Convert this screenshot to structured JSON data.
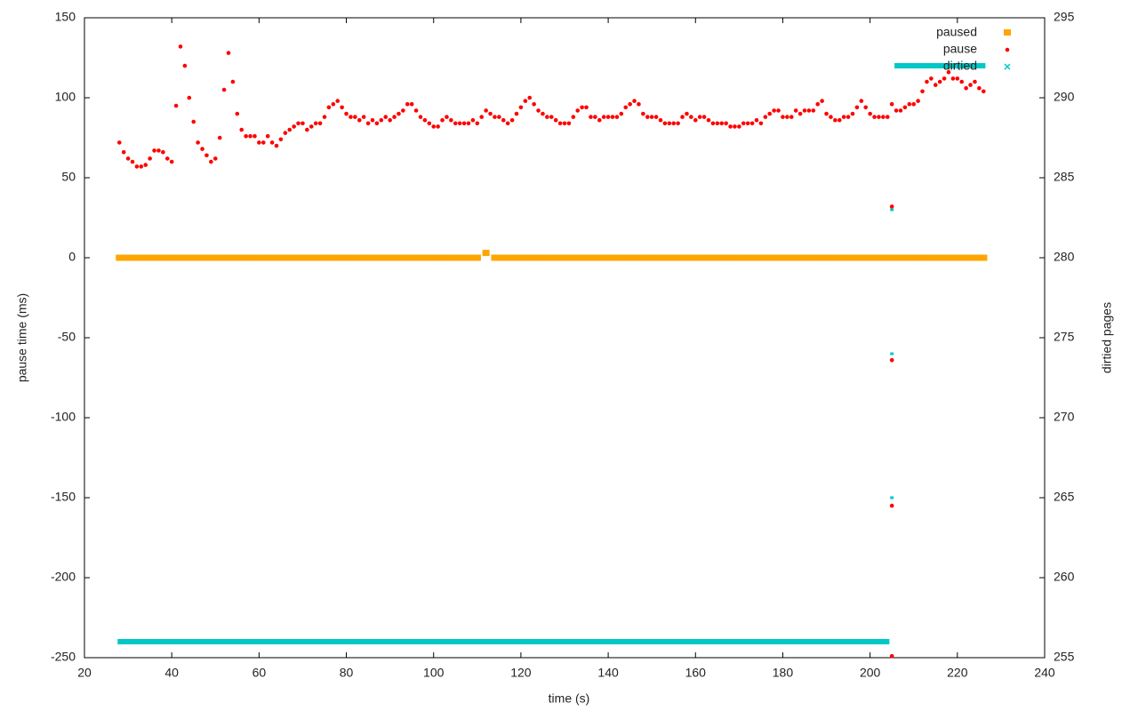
{
  "chart_data": {
    "type": "scatter",
    "xlabel": "time (s)",
    "ylabel": "pause time (ms)",
    "y2label": "dirtied pages",
    "xlim": [
      20,
      240
    ],
    "xticks": [
      20,
      40,
      60,
      80,
      100,
      120,
      140,
      160,
      180,
      200,
      220,
      240
    ],
    "ylim": [
      -250,
      150
    ],
    "yticks": [
      -250,
      -200,
      -150,
      -100,
      -50,
      0,
      50,
      100,
      150
    ],
    "y2lim": [
      255,
      295
    ],
    "y2ticks": [
      255,
      260,
      265,
      270,
      275,
      280,
      285,
      290,
      295
    ],
    "legend": "top-right",
    "series": [
      {
        "name": "paused",
        "color": "#ffa500",
        "x": [
          28,
          30,
          32,
          34,
          36,
          38,
          40,
          42,
          44,
          46,
          48,
          50,
          52,
          54,
          56,
          58,
          60,
          62,
          64,
          66,
          68,
          70,
          72,
          74,
          76,
          78,
          80,
          82,
          84,
          86,
          88,
          90,
          92,
          94,
          96,
          98,
          100,
          102,
          104,
          106,
          108,
          110,
          112,
          114,
          116,
          118,
          120,
          122,
          124,
          126,
          128,
          130,
          132,
          134,
          136,
          138,
          140,
          142,
          144,
          146,
          148,
          150,
          152,
          154,
          156,
          158,
          160,
          162,
          164,
          166,
          168,
          170,
          172,
          174,
          176,
          178,
          180,
          182,
          184,
          186,
          188,
          190,
          192,
          194,
          196,
          198,
          200,
          202,
          204,
          206,
          208,
          210,
          212,
          214,
          216,
          218,
          220,
          222,
          224,
          226
        ],
        "values": [
          0,
          0,
          0,
          0,
          0,
          0,
          0,
          0,
          0,
          0,
          0,
          0,
          0,
          0,
          0,
          0,
          0,
          0,
          0,
          0,
          0,
          0,
          0,
          0,
          0,
          0,
          0,
          0,
          0,
          0,
          0,
          0,
          0,
          0,
          0,
          0,
          0,
          0,
          0,
          0,
          0,
          0,
          3,
          0,
          0,
          0,
          0,
          0,
          0,
          0,
          0,
          0,
          0,
          0,
          0,
          0,
          0,
          0,
          0,
          0,
          0,
          0,
          0,
          0,
          0,
          0,
          0,
          0,
          0,
          0,
          0,
          0,
          0,
          0,
          0,
          0,
          0,
          0,
          0,
          0,
          0,
          0,
          0,
          0,
          0,
          0,
          0,
          0,
          0,
          0,
          0,
          0,
          0,
          0,
          0,
          0,
          0,
          0,
          0,
          0
        ]
      },
      {
        "name": "pause",
        "color": "#ff0000",
        "x": [
          28,
          29,
          30,
          31,
          32,
          33,
          34,
          35,
          36,
          37,
          38,
          39,
          40,
          41,
          42,
          43,
          44,
          45,
          46,
          47,
          48,
          49,
          50,
          51,
          52,
          53,
          54,
          55,
          56,
          57,
          58,
          59,
          60,
          61,
          62,
          63,
          64,
          65,
          66,
          67,
          68,
          69,
          70,
          71,
          72,
          73,
          74,
          75,
          76,
          77,
          78,
          79,
          80,
          81,
          82,
          83,
          84,
          85,
          86,
          87,
          88,
          89,
          90,
          91,
          92,
          93,
          94,
          95,
          96,
          97,
          98,
          99,
          100,
          101,
          102,
          103,
          104,
          105,
          106,
          107,
          108,
          109,
          110,
          111,
          112,
          113,
          114,
          115,
          116,
          117,
          118,
          119,
          120,
          121,
          122,
          123,
          124,
          125,
          126,
          127,
          128,
          129,
          130,
          131,
          132,
          133,
          134,
          135,
          136,
          137,
          138,
          139,
          140,
          141,
          142,
          143,
          144,
          145,
          146,
          147,
          148,
          149,
          150,
          151,
          152,
          153,
          154,
          155,
          156,
          157,
          158,
          159,
          160,
          161,
          162,
          163,
          164,
          165,
          166,
          167,
          168,
          169,
          170,
          171,
          172,
          173,
          174,
          175,
          176,
          177,
          178,
          179,
          180,
          181,
          182,
          183,
          184,
          185,
          186,
          187,
          188,
          189,
          190,
          191,
          192,
          193,
          194,
          195,
          196,
          197,
          198,
          199,
          200,
          201,
          202,
          203,
          204,
          205,
          206,
          207,
          208,
          209,
          210,
          211,
          212,
          213,
          214,
          215,
          216,
          217,
          218,
          219,
          220,
          221,
          222,
          223,
          224,
          225,
          226,
          205,
          205,
          205,
          205
        ],
        "values": [
          72,
          66,
          62,
          60,
          57,
          57,
          58,
          62,
          67,
          67,
          66,
          62,
          60,
          95,
          132,
          120,
          100,
          85,
          72,
          68,
          64,
          60,
          62,
          75,
          105,
          128,
          110,
          90,
          80,
          76,
          76,
          76,
          72,
          72,
          76,
          72,
          70,
          74,
          78,
          80,
          82,
          84,
          84,
          80,
          82,
          84,
          84,
          88,
          94,
          96,
          98,
          94,
          90,
          88,
          88,
          86,
          88,
          84,
          86,
          84,
          86,
          88,
          86,
          88,
          90,
          92,
          96,
          96,
          92,
          88,
          86,
          84,
          82,
          82,
          86,
          88,
          86,
          84,
          84,
          84,
          84,
          86,
          84,
          88,
          92,
          90,
          88,
          88,
          86,
          84,
          86,
          90,
          94,
          98,
          100,
          96,
          92,
          90,
          88,
          88,
          86,
          84,
          84,
          84,
          88,
          92,
          94,
          94,
          88,
          88,
          86,
          88,
          88,
          88,
          88,
          90,
          94,
          96,
          98,
          96,
          90,
          88,
          88,
          88,
          86,
          84,
          84,
          84,
          84,
          88,
          90,
          88,
          86,
          88,
          88,
          86,
          84,
          84,
          84,
          84,
          82,
          82,
          82,
          84,
          84,
          84,
          86,
          84,
          88,
          90,
          92,
          92,
          88,
          88,
          88,
          92,
          90,
          92,
          92,
          92,
          96,
          98,
          90,
          88,
          86,
          86,
          88,
          88,
          90,
          94,
          98,
          94,
          90,
          88,
          88,
          88,
          88,
          96,
          92,
          92,
          94,
          96,
          96,
          98,
          104,
          110,
          112,
          108,
          110,
          112,
          116,
          112,
          112,
          110,
          106,
          108,
          110,
          106,
          104,
          32,
          -64,
          -155,
          -249
        ]
      },
      {
        "name": "dirtied",
        "color": "#00c8c8",
        "axis": "y2",
        "x": [
          28,
          32,
          36,
          40,
          44,
          48,
          52,
          56,
          60,
          64,
          68,
          72,
          76,
          80,
          84,
          88,
          92,
          96,
          100,
          104,
          108,
          112,
          116,
          120,
          124,
          128,
          132,
          136,
          140,
          144,
          148,
          152,
          156,
          160,
          164,
          168,
          172,
          176,
          180,
          184,
          188,
          192,
          196,
          200,
          204,
          205,
          205,
          205,
          206,
          210,
          214,
          218,
          222,
          226
        ],
        "values": [
          256,
          256,
          256,
          256,
          256,
          256,
          256,
          256,
          256,
          256,
          256,
          256,
          256,
          256,
          256,
          256,
          256,
          256,
          256,
          256,
          256,
          256,
          256,
          256,
          256,
          256,
          256,
          256,
          256,
          256,
          256,
          256,
          256,
          256,
          256,
          256,
          256,
          256,
          256,
          256,
          256,
          256,
          256,
          256,
          256,
          283,
          274,
          265,
          292,
          292,
          292,
          292,
          292,
          292
        ]
      }
    ]
  }
}
